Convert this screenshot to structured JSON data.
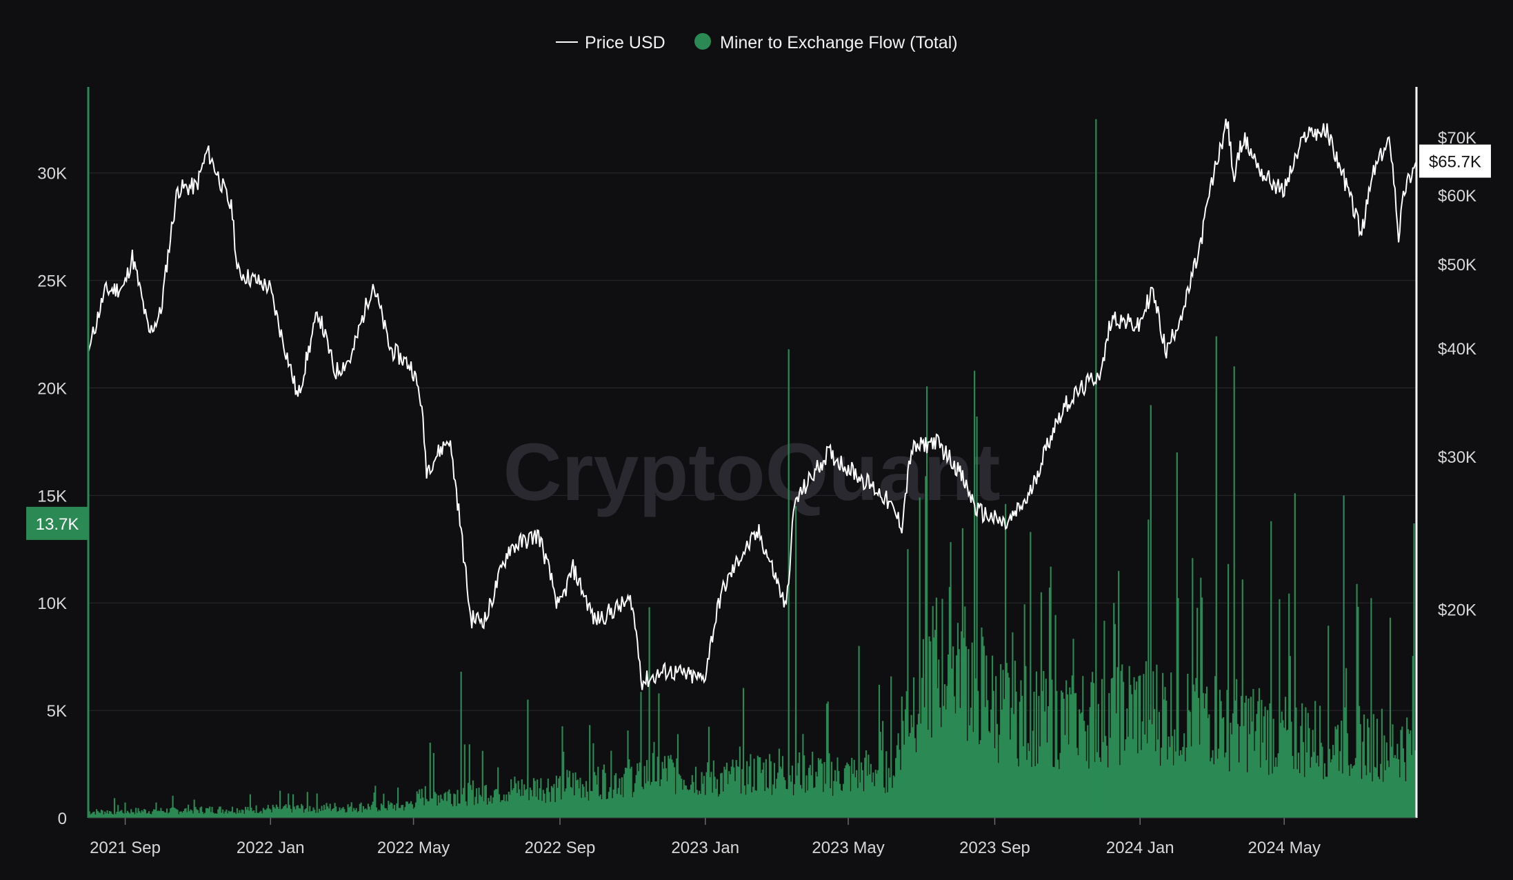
{
  "watermark": "CryptoQuant",
  "colors": {
    "background": "#0f0f11",
    "price_line": "#ffffff",
    "flow_bar": "#2b8a53",
    "grid": "#2a2a2e",
    "badge_left": "#2b8a53",
    "badge_right": "#ffffff"
  },
  "legend": [
    {
      "label": "Price USD",
      "marker": "line"
    },
    {
      "label": "Miner to Exchange Flow (Total)",
      "marker": "dot"
    }
  ],
  "left_axis_badge": "13.7K",
  "right_axis_badge": "$65.7K",
  "chart_data": {
    "type": "bar",
    "x_type": "date",
    "x_range": [
      "2021-08-01",
      "2024-08-20"
    ],
    "x_ticks": [
      {
        "date": "2021-09-01",
        "label": "2021 Sep"
      },
      {
        "date": "2022-01-01",
        "label": "2022 Jan"
      },
      {
        "date": "2022-05-01",
        "label": "2022 May"
      },
      {
        "date": "2022-09-01",
        "label": "2022 Sep"
      },
      {
        "date": "2023-01-01",
        "label": "2023 Jan"
      },
      {
        "date": "2023-05-01",
        "label": "2023 May"
      },
      {
        "date": "2023-09-01",
        "label": "2023 Sep"
      },
      {
        "date": "2024-01-01",
        "label": "2024 Jan"
      },
      {
        "date": "2024-05-01",
        "label": "2024 May"
      }
    ],
    "left_axis": {
      "range": [
        0,
        34000
      ],
      "ticks": [
        {
          "value": 0,
          "label": "0"
        },
        {
          "value": 5000,
          "label": "5K"
        },
        {
          "value": 10000,
          "label": "10K"
        },
        {
          "value": 15000,
          "label": "15K"
        },
        {
          "value": 20000,
          "label": "20K"
        },
        {
          "value": 25000,
          "label": "25K"
        },
        {
          "value": 30000,
          "label": "30K"
        }
      ]
    },
    "right_axis": {
      "scale": "log",
      "range": [
        11500,
        80000
      ],
      "ticks": [
        {
          "value": 20000,
          "label": "$20K"
        },
        {
          "value": 30000,
          "label": "$30K"
        },
        {
          "value": 40000,
          "label": "$40K"
        },
        {
          "value": 50000,
          "label": "$50K"
        },
        {
          "value": 60000,
          "label": "$60K"
        },
        {
          "value": 70000,
          "label": "$70K"
        }
      ]
    },
    "series": [
      {
        "name": "Price USD",
        "type": "line",
        "axis": "right",
        "points": [
          [
            "2021-08-01",
            39500
          ],
          [
            "2021-08-15",
            46500
          ],
          [
            "2021-08-31",
            47000
          ],
          [
            "2021-09-07",
            51000
          ],
          [
            "2021-09-21",
            41500
          ],
          [
            "2021-10-01",
            44000
          ],
          [
            "2021-10-15",
            61000
          ],
          [
            "2021-10-31",
            61500
          ],
          [
            "2021-11-09",
            67500
          ],
          [
            "2021-11-30",
            57500
          ],
          [
            "2021-12-04",
            49000
          ],
          [
            "2021-12-31",
            47000
          ],
          [
            "2022-01-10",
            41500
          ],
          [
            "2022-01-24",
            35000
          ],
          [
            "2022-02-10",
            44000
          ],
          [
            "2022-02-24",
            37500
          ],
          [
            "2022-03-10",
            39000
          ],
          [
            "2022-03-28",
            47500
          ],
          [
            "2022-04-11",
            40000
          ],
          [
            "2022-04-30",
            38000
          ],
          [
            "2022-05-07",
            35000
          ],
          [
            "2022-05-12",
            29000
          ],
          [
            "2022-05-31",
            31500
          ],
          [
            "2022-06-13",
            22500
          ],
          [
            "2022-06-18",
            19500
          ],
          [
            "2022-07-01",
            19500
          ],
          [
            "2022-07-20",
            23500
          ],
          [
            "2022-08-14",
            24400
          ],
          [
            "2022-08-31",
            20000
          ],
          [
            "2022-09-12",
            22300
          ],
          [
            "2022-09-30",
            19400
          ],
          [
            "2022-10-31",
            20500
          ],
          [
            "2022-11-09",
            16500
          ],
          [
            "2022-11-30",
            17000
          ],
          [
            "2022-12-31",
            16600
          ],
          [
            "2023-01-14",
            20800
          ],
          [
            "2023-01-31",
            23100
          ],
          [
            "2023-02-15",
            24500
          ],
          [
            "2023-03-10",
            20000
          ],
          [
            "2023-03-17",
            26500
          ],
          [
            "2023-04-14",
            30300
          ],
          [
            "2023-04-30",
            29200
          ],
          [
            "2023-05-31",
            27000
          ],
          [
            "2023-06-15",
            25000
          ],
          [
            "2023-06-23",
            30500
          ],
          [
            "2023-07-13",
            31300
          ],
          [
            "2023-07-31",
            29200
          ],
          [
            "2023-08-17",
            26000
          ],
          [
            "2023-09-11",
            25000
          ],
          [
            "2023-09-30",
            27000
          ],
          [
            "2023-10-23",
            33000
          ],
          [
            "2023-10-31",
            34500
          ],
          [
            "2023-11-30",
            37700
          ],
          [
            "2023-12-08",
            43500
          ],
          [
            "2023-12-31",
            42300
          ],
          [
            "2024-01-11",
            46700
          ],
          [
            "2024-01-23",
            39500
          ],
          [
            "2024-02-08",
            45000
          ],
          [
            "2024-02-20",
            52000
          ],
          [
            "2024-02-28",
            60000
          ],
          [
            "2024-03-14",
            73000
          ],
          [
            "2024-03-20",
            62500
          ],
          [
            "2024-03-27",
            70000
          ],
          [
            "2024-04-13",
            63500
          ],
          [
            "2024-04-30",
            60500
          ],
          [
            "2024-05-20",
            71000
          ],
          [
            "2024-06-06",
            71000
          ],
          [
            "2024-06-24",
            60500
          ],
          [
            "2024-07-05",
            54000
          ],
          [
            "2024-07-15",
            64000
          ],
          [
            "2024-07-29",
            69500
          ],
          [
            "2024-08-05",
            54000
          ],
          [
            "2024-08-10",
            61000
          ],
          [
            "2024-08-20",
            65700
          ]
        ]
      },
      {
        "name": "Miner to Exchange Flow (Total)",
        "type": "bar",
        "axis": "left",
        "baseline": [
          [
            "2021-08-01",
            300
          ],
          [
            "2022-01-01",
            450
          ],
          [
            "2022-04-25",
            600
          ],
          [
            "2022-05-10",
            1100
          ],
          [
            "2022-09-01",
            1600
          ],
          [
            "2022-12-01",
            2300
          ],
          [
            "2023-01-15",
            1900
          ],
          [
            "2023-03-01",
            2400
          ],
          [
            "2023-05-01",
            2100
          ],
          [
            "2023-06-10",
            2600
          ],
          [
            "2023-06-12",
            4200
          ],
          [
            "2023-07-01",
            7000
          ],
          [
            "2023-08-01",
            8200
          ],
          [
            "2023-09-01",
            5500
          ],
          [
            "2023-11-01",
            4800
          ],
          [
            "2024-01-01",
            5400
          ],
          [
            "2024-03-01",
            5000
          ],
          [
            "2024-05-01",
            4100
          ],
          [
            "2024-08-20",
            3600
          ]
        ],
        "spikes": [
          [
            "2022-05-15",
            3500
          ],
          [
            "2022-06-10",
            6800
          ],
          [
            "2022-08-05",
            5500
          ],
          [
            "2022-11-15",
            9800
          ],
          [
            "2023-03-12",
            21800
          ],
          [
            "2023-03-18",
            14500
          ],
          [
            "2023-05-10",
            8000
          ],
          [
            "2023-06-20",
            12500
          ],
          [
            "2023-08-15",
            20800
          ],
          [
            "2023-10-01",
            13300
          ],
          [
            "2023-11-25",
            32500
          ],
          [
            "2023-12-10",
            10000
          ],
          [
            "2024-01-10",
            19200
          ],
          [
            "2024-02-01",
            17000
          ],
          [
            "2024-03-05",
            22400
          ],
          [
            "2024-03-20",
            21000
          ],
          [
            "2024-04-20",
            13800
          ],
          [
            "2024-05-10",
            15100
          ],
          [
            "2024-06-20",
            15000
          ],
          [
            "2024-08-18",
            13700
          ]
        ],
        "last_value": 13700
      }
    ]
  }
}
